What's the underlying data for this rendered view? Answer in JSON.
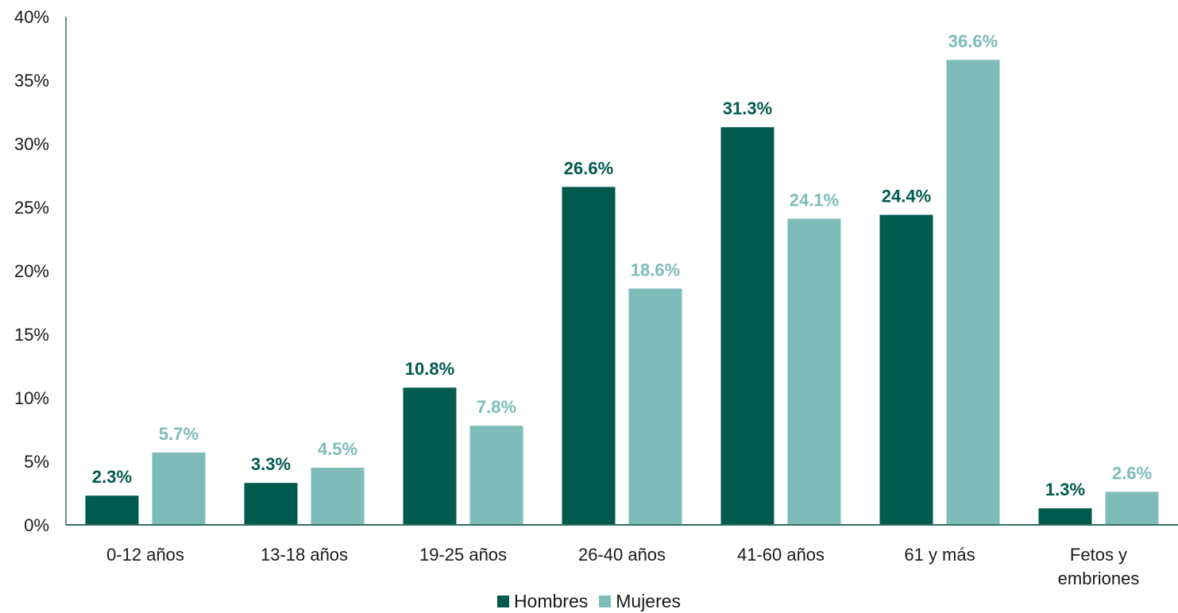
{
  "chart_data": {
    "type": "bar",
    "categories": [
      "0-12 años",
      "13-18 años",
      "19-25 años",
      "26-40 años",
      "41-60 años",
      "61 y más",
      "Fetos y embriones"
    ],
    "series": [
      {
        "name": "Hombres",
        "color": "#005a4e",
        "values": [
          2.3,
          3.3,
          10.8,
          26.6,
          31.3,
          24.4,
          1.3
        ]
      },
      {
        "name": "Mujeres",
        "color": "#7dbcb9",
        "values": [
          5.7,
          4.5,
          7.8,
          18.6,
          24.1,
          36.6,
          2.6
        ]
      }
    ],
    "data_labels": {
      "Hombres": [
        "2.3%",
        "3.3%",
        "10.8%",
        "26.6%",
        "31.3%",
        "24.4%",
        "1.3%"
      ],
      "Mujeres": [
        "5.7%",
        "4.5%",
        "7.8%",
        "18.6%",
        "24.1%",
        "36.6%",
        "2.6%"
      ]
    },
    "y_ticks": [
      "0%",
      "5%",
      "10%",
      "15%",
      "20%",
      "25%",
      "30%",
      "35%",
      "40%"
    ],
    "ylim": [
      0,
      40
    ],
    "title": "",
    "xlabel": "",
    "ylabel": "",
    "grid": false,
    "legend_position": "bottom-center",
    "axis_color": "#2f6f63"
  },
  "legend": {
    "items": [
      {
        "label": "Hombres",
        "color": "#005a4e"
      },
      {
        "label": "Mujeres",
        "color": "#7dbcb9"
      }
    ]
  }
}
